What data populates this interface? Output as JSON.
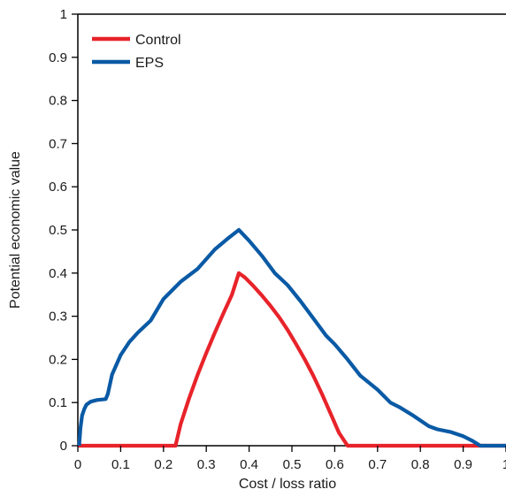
{
  "chart_data": {
    "type": "line",
    "title": "",
    "xlabel": "Cost / loss ratio",
    "ylabel": "Potential economic value",
    "xlim": [
      0,
      1
    ],
    "ylim": [
      0,
      1
    ],
    "xticks": [
      "0",
      "0.1",
      "0.2",
      "0.3",
      "0.4",
      "0.5",
      "0.6",
      "0.7",
      "0.8",
      "0.9",
      "1"
    ],
    "yticks": [
      "0",
      "0.1",
      "0.2",
      "0.3",
      "0.4",
      "0.5",
      "0.6",
      "0.7",
      "0.8",
      "0.9",
      "1"
    ],
    "grid": false,
    "legend": "top-left",
    "series": [
      {
        "name": "Control",
        "color": "#e8232a",
        "x": [
          0,
          0.228,
          0.24,
          0.26,
          0.28,
          0.3,
          0.32,
          0.34,
          0.36,
          0.376,
          0.39,
          0.41,
          0.43,
          0.45,
          0.47,
          0.49,
          0.51,
          0.53,
          0.55,
          0.57,
          0.59,
          0.61,
          0.63,
          0.65,
          0.7,
          0.8,
          0.9,
          1.0
        ],
        "y": [
          0,
          0,
          0.05,
          0.11,
          0.165,
          0.215,
          0.262,
          0.307,
          0.35,
          0.4,
          0.39,
          0.37,
          0.348,
          0.324,
          0.298,
          0.268,
          0.235,
          0.2,
          0.162,
          0.12,
          0.075,
          0.03,
          0,
          0,
          0,
          0,
          0,
          0
        ]
      },
      {
        "name": "EPS",
        "color": "#0a5aa5",
        "x": [
          0.003,
          0.006,
          0.01,
          0.015,
          0.02,
          0.03,
          0.045,
          0.065,
          0.07,
          0.08,
          0.1,
          0.12,
          0.14,
          0.17,
          0.2,
          0.24,
          0.28,
          0.32,
          0.35,
          0.376,
          0.4,
          0.43,
          0.46,
          0.49,
          0.52,
          0.55,
          0.58,
          0.6,
          0.63,
          0.66,
          0.7,
          0.73,
          0.75,
          0.78,
          0.82,
          0.84,
          0.87,
          0.9,
          0.92,
          0.94,
          0.96,
          1.0
        ],
        "y": [
          0.0,
          0.04,
          0.07,
          0.085,
          0.095,
          0.102,
          0.106,
          0.108,
          0.12,
          0.165,
          0.21,
          0.24,
          0.262,
          0.29,
          0.34,
          0.38,
          0.41,
          0.455,
          0.48,
          0.5,
          0.475,
          0.44,
          0.4,
          0.372,
          0.335,
          0.295,
          0.255,
          0.235,
          0.2,
          0.162,
          0.13,
          0.1,
          0.09,
          0.072,
          0.045,
          0.038,
          0.032,
          0.022,
          0.012,
          0.0,
          0.0,
          0.0
        ]
      }
    ]
  }
}
